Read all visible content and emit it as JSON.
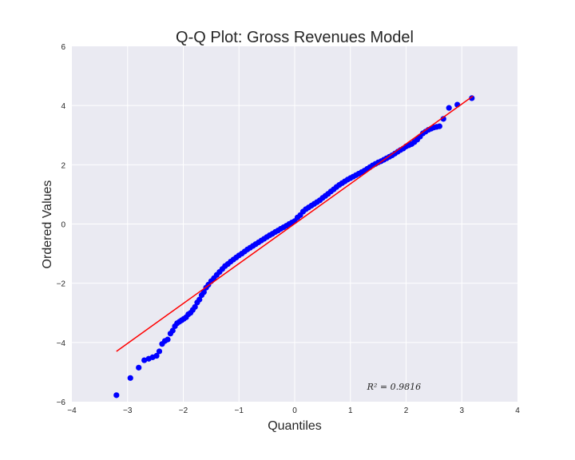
{
  "chart_data": {
    "type": "scatter",
    "title": "Q-Q Plot: Gross Revenues Model",
    "xlabel": "Quantiles",
    "ylabel": "Ordered Values",
    "xlim": [
      -4,
      4
    ],
    "ylim": [
      -6,
      6
    ],
    "xticks": [
      "−4",
      "−3",
      "−2",
      "−1",
      "0",
      "1",
      "2",
      "3",
      "4"
    ],
    "yticks": [
      "−6",
      "−4",
      "−2",
      "0",
      "2",
      "4",
      "6"
    ],
    "grid": true,
    "background": "#eaeaf2",
    "marker_color": "#0000ff",
    "fit_line_color": "#ff0000",
    "fit_line": {
      "x": [
        -3.2,
        3.2
      ],
      "y": [
        -4.3,
        4.32
      ]
    },
    "annotation": {
      "text": "R² = 0.9816",
      "x": 1.3,
      "y": -5.6
    },
    "series": [
      {
        "x": [
          -3.2,
          -2.95,
          -2.8,
          -2.7,
          -2.62,
          -2.55,
          -2.48,
          -2.43,
          -2.38,
          -2.33,
          -2.28,
          -2.23,
          -2.19,
          -2.15,
          -2.11,
          -2.07,
          -2.03,
          -1.99,
          -1.95,
          -1.91,
          -1.87,
          -1.83,
          -1.79,
          -1.75,
          -1.71,
          -1.67,
          -1.63,
          -1.59,
          -1.55,
          -1.5,
          -1.45,
          -1.4,
          -1.35,
          -1.3,
          -1.25,
          -1.2,
          -1.15,
          -1.1,
          -1.05,
          -1.0,
          -0.95,
          -0.9,
          -0.85,
          -0.8,
          -0.75,
          -0.7,
          -0.65,
          -0.6,
          -0.55,
          -0.5,
          -0.45,
          -0.4,
          -0.35,
          -0.3,
          -0.25,
          -0.2,
          -0.15,
          -0.1,
          -0.05,
          0.0,
          0.05,
          0.1,
          0.15,
          0.2,
          0.25,
          0.3,
          0.35,
          0.4,
          0.45,
          0.5,
          0.55,
          0.6,
          0.65,
          0.7,
          0.75,
          0.8,
          0.85,
          0.9,
          0.95,
          1.0,
          1.05,
          1.1,
          1.15,
          1.2,
          1.25,
          1.3,
          1.35,
          1.4,
          1.45,
          1.5,
          1.55,
          1.6,
          1.65,
          1.7,
          1.75,
          1.8,
          1.85,
          1.9,
          1.95,
          2.0,
          2.05,
          2.1,
          2.15,
          2.2,
          2.25,
          2.3,
          2.35,
          2.4,
          2.45,
          2.5,
          2.55,
          2.6,
          2.67,
          2.77,
          2.92,
          3.18
        ],
        "y": [
          -5.78,
          -5.2,
          -4.85,
          -4.6,
          -4.55,
          -4.5,
          -4.45,
          -4.3,
          -4.05,
          -3.95,
          -3.9,
          -3.7,
          -3.6,
          -3.45,
          -3.35,
          -3.3,
          -3.25,
          -3.2,
          -3.15,
          -3.05,
          -3.0,
          -2.9,
          -2.8,
          -2.65,
          -2.55,
          -2.4,
          -2.3,
          -2.15,
          -2.05,
          -1.93,
          -1.83,
          -1.72,
          -1.62,
          -1.52,
          -1.42,
          -1.35,
          -1.27,
          -1.2,
          -1.13,
          -1.06,
          -1.0,
          -0.93,
          -0.86,
          -0.8,
          -0.74,
          -0.68,
          -0.62,
          -0.56,
          -0.5,
          -0.44,
          -0.38,
          -0.33,
          -0.27,
          -0.22,
          -0.16,
          -0.11,
          -0.06,
          0.0,
          0.05,
          0.1,
          0.22,
          0.3,
          0.42,
          0.5,
          0.56,
          0.62,
          0.68,
          0.74,
          0.8,
          0.88,
          0.95,
          1.02,
          1.1,
          1.17,
          1.25,
          1.32,
          1.38,
          1.44,
          1.5,
          1.55,
          1.6,
          1.65,
          1.7,
          1.75,
          1.8,
          1.86,
          1.92,
          1.98,
          2.03,
          2.08,
          2.12,
          2.17,
          2.22,
          2.27,
          2.32,
          2.38,
          2.44,
          2.5,
          2.55,
          2.62,
          2.66,
          2.7,
          2.77,
          2.85,
          2.95,
          3.06,
          3.12,
          3.18,
          3.22,
          3.26,
          3.28,
          3.3,
          3.55,
          3.92,
          4.03,
          4.25
        ]
      }
    ]
  }
}
